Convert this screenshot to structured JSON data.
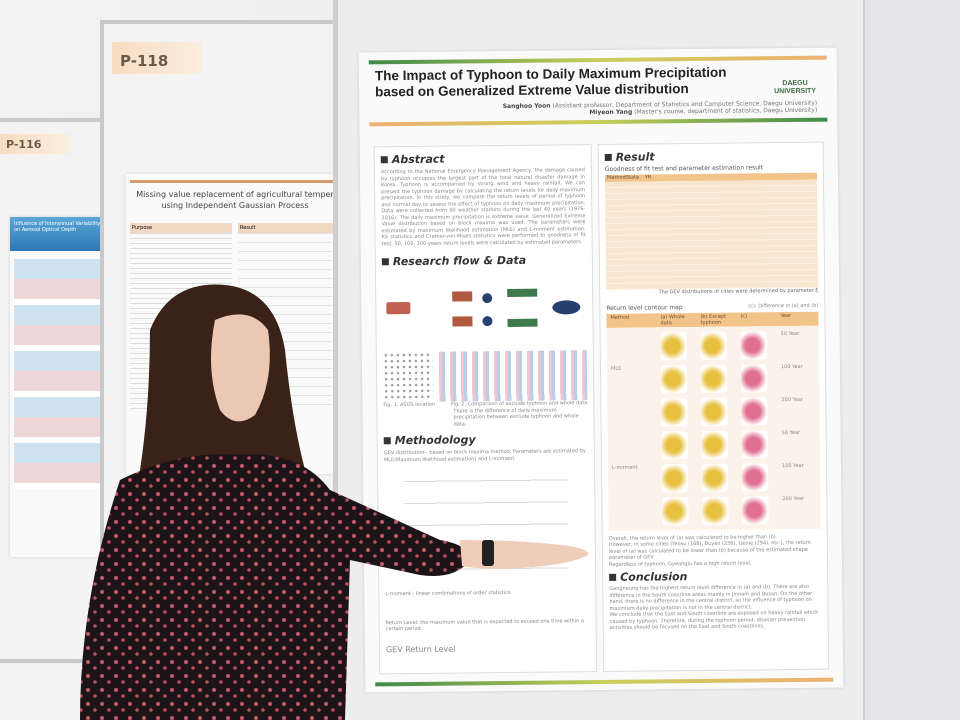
{
  "left_posters": {
    "p116": {
      "tag": "P-116",
      "title": "Influence of Interannual Variability on Aerosol Optical Depth"
    },
    "p118": {
      "tag": "P-118",
      "title_line1": "Missing value replacement of agricultural temper",
      "title_line2": "using Independent Gaussian Process",
      "section_purpose": "Purpose",
      "section_result": "Result"
    }
  },
  "poster": {
    "title_line1": "The Impact of Typhoon to Daily Maximum Precipitation",
    "title_line2": "based on Generalized Extreme Value distribution",
    "logo": "DAEGU UNIVERSITY",
    "author1_name": "Sanghoo Yoon",
    "author1_affil": "(Assistant professor, Department of Statistics and Computer Science, Daegu University)",
    "author2_name": "Miyeon Yang",
    "author2_affil": "(Master's course, department of statistics, Daegu University)",
    "abstract": {
      "heading": "Abstract",
      "text": "According to the National Emergency Management Agency, the damage caused by typhoon occupies the largest part of the total natural disaster damage in Korea. Typhoon is accompanied by strong wind and heavy rainfall. We can present the typhoon damage by calculating the return levels for daily maximum precipitation. In this study, we compare the return levels of period of typhoon and normal day to assess the effect of typhoon on daily maximum precipitation. Data were collected from 60 weather stations during the last 40 years (1976-2016). The daily maximum precipitation is extreme value. Generalized Extreme Value distribution based on block maxima was used. The parameters were estimated by maximum likelihood estimation (MLE) and L-moment estimation. KS statistics and Cramer-von-Mises statistics were performed to goodness of fit test. 50, 100, 200 years return levels were calculated by estimated parameters."
    },
    "research_flow": {
      "heading": "Research flow & Data",
      "fig1": "Fig. 1. ASOS location",
      "fig2": "Fig. 2. Comparison of exclude typhoon and whole data",
      "note": "There is the difference of daily maximum precipitation between exclude typhoon and whole data."
    },
    "methodology": {
      "heading": "Methodology",
      "gev": "GEV distribution - based on block maxima method. Parameters are estimated by MLE(Maximum likelihood estimation) and L-moment.",
      "lmoment": "L-moment - linear combinations of order statistics",
      "return_level": "Return Level: the maximum value that is expected to exceed one time within a certain period.",
      "gev_return_label": "GEV Return Level"
    },
    "result": {
      "heading": "Result",
      "gof_title": "Goodness of fit test and parameter estimation result",
      "table_headers": [
        "Method",
        "State",
        "YR",
        "",
        "",
        "",
        "",
        "",
        "",
        "",
        ""
      ],
      "methods": [
        "MLE",
        "L-moment"
      ],
      "states": [
        "Exclude typhoon",
        "Whole data",
        "Exclude typhoon",
        "Whole data"
      ],
      "table_note": "The GEV distributions of cities were determined by parameter ξ",
      "contour_title": "Return level contour map",
      "contour_note": "(c): Difference in (a) and (b)",
      "contour_headers": [
        "Method",
        "(a) Whole data",
        "(b) Except typhoon",
        "(c)",
        "Year"
      ],
      "years": [
        "50 Year",
        "100 Year",
        "200 Year",
        "50 Year",
        "100 Year",
        "200 Year"
      ],
      "bullets": [
        "Overall, the return level of (a) was calculated to be higher than (b).",
        "However, in some cities (Yeosu (168), Buyeo (236), Geoje (294), etc.), the return level of (a) was calculated to be lower than (b) because of the estimated shape parameter of GEV.",
        "Regardless of typhoon, Gyeongju has a high return level."
      ]
    },
    "conclusion": {
      "heading": "Conclusion",
      "bullets": [
        "Gangneung has the highest return level difference in (a) and (b). There are also difference in the South coastline areas mainly in Jinnam and Busan. On the other hand, there is no difference in the central district, so the influence of typhoon on maximum daily precipitation is not in the central district.",
        "We conclude that the East and South coastline are exposed on heavy rainfall which caused by typhoon. Therefore, during the typhoon period, disaster prevention activities should be focused on the East and South coastlines."
      ]
    }
  },
  "colors": {
    "accent_green": "#3f8a4a",
    "accent_orange": "#f0b070",
    "table_header": "#f2c48a",
    "dress": "#1c1416",
    "hair": "#3a2218"
  }
}
